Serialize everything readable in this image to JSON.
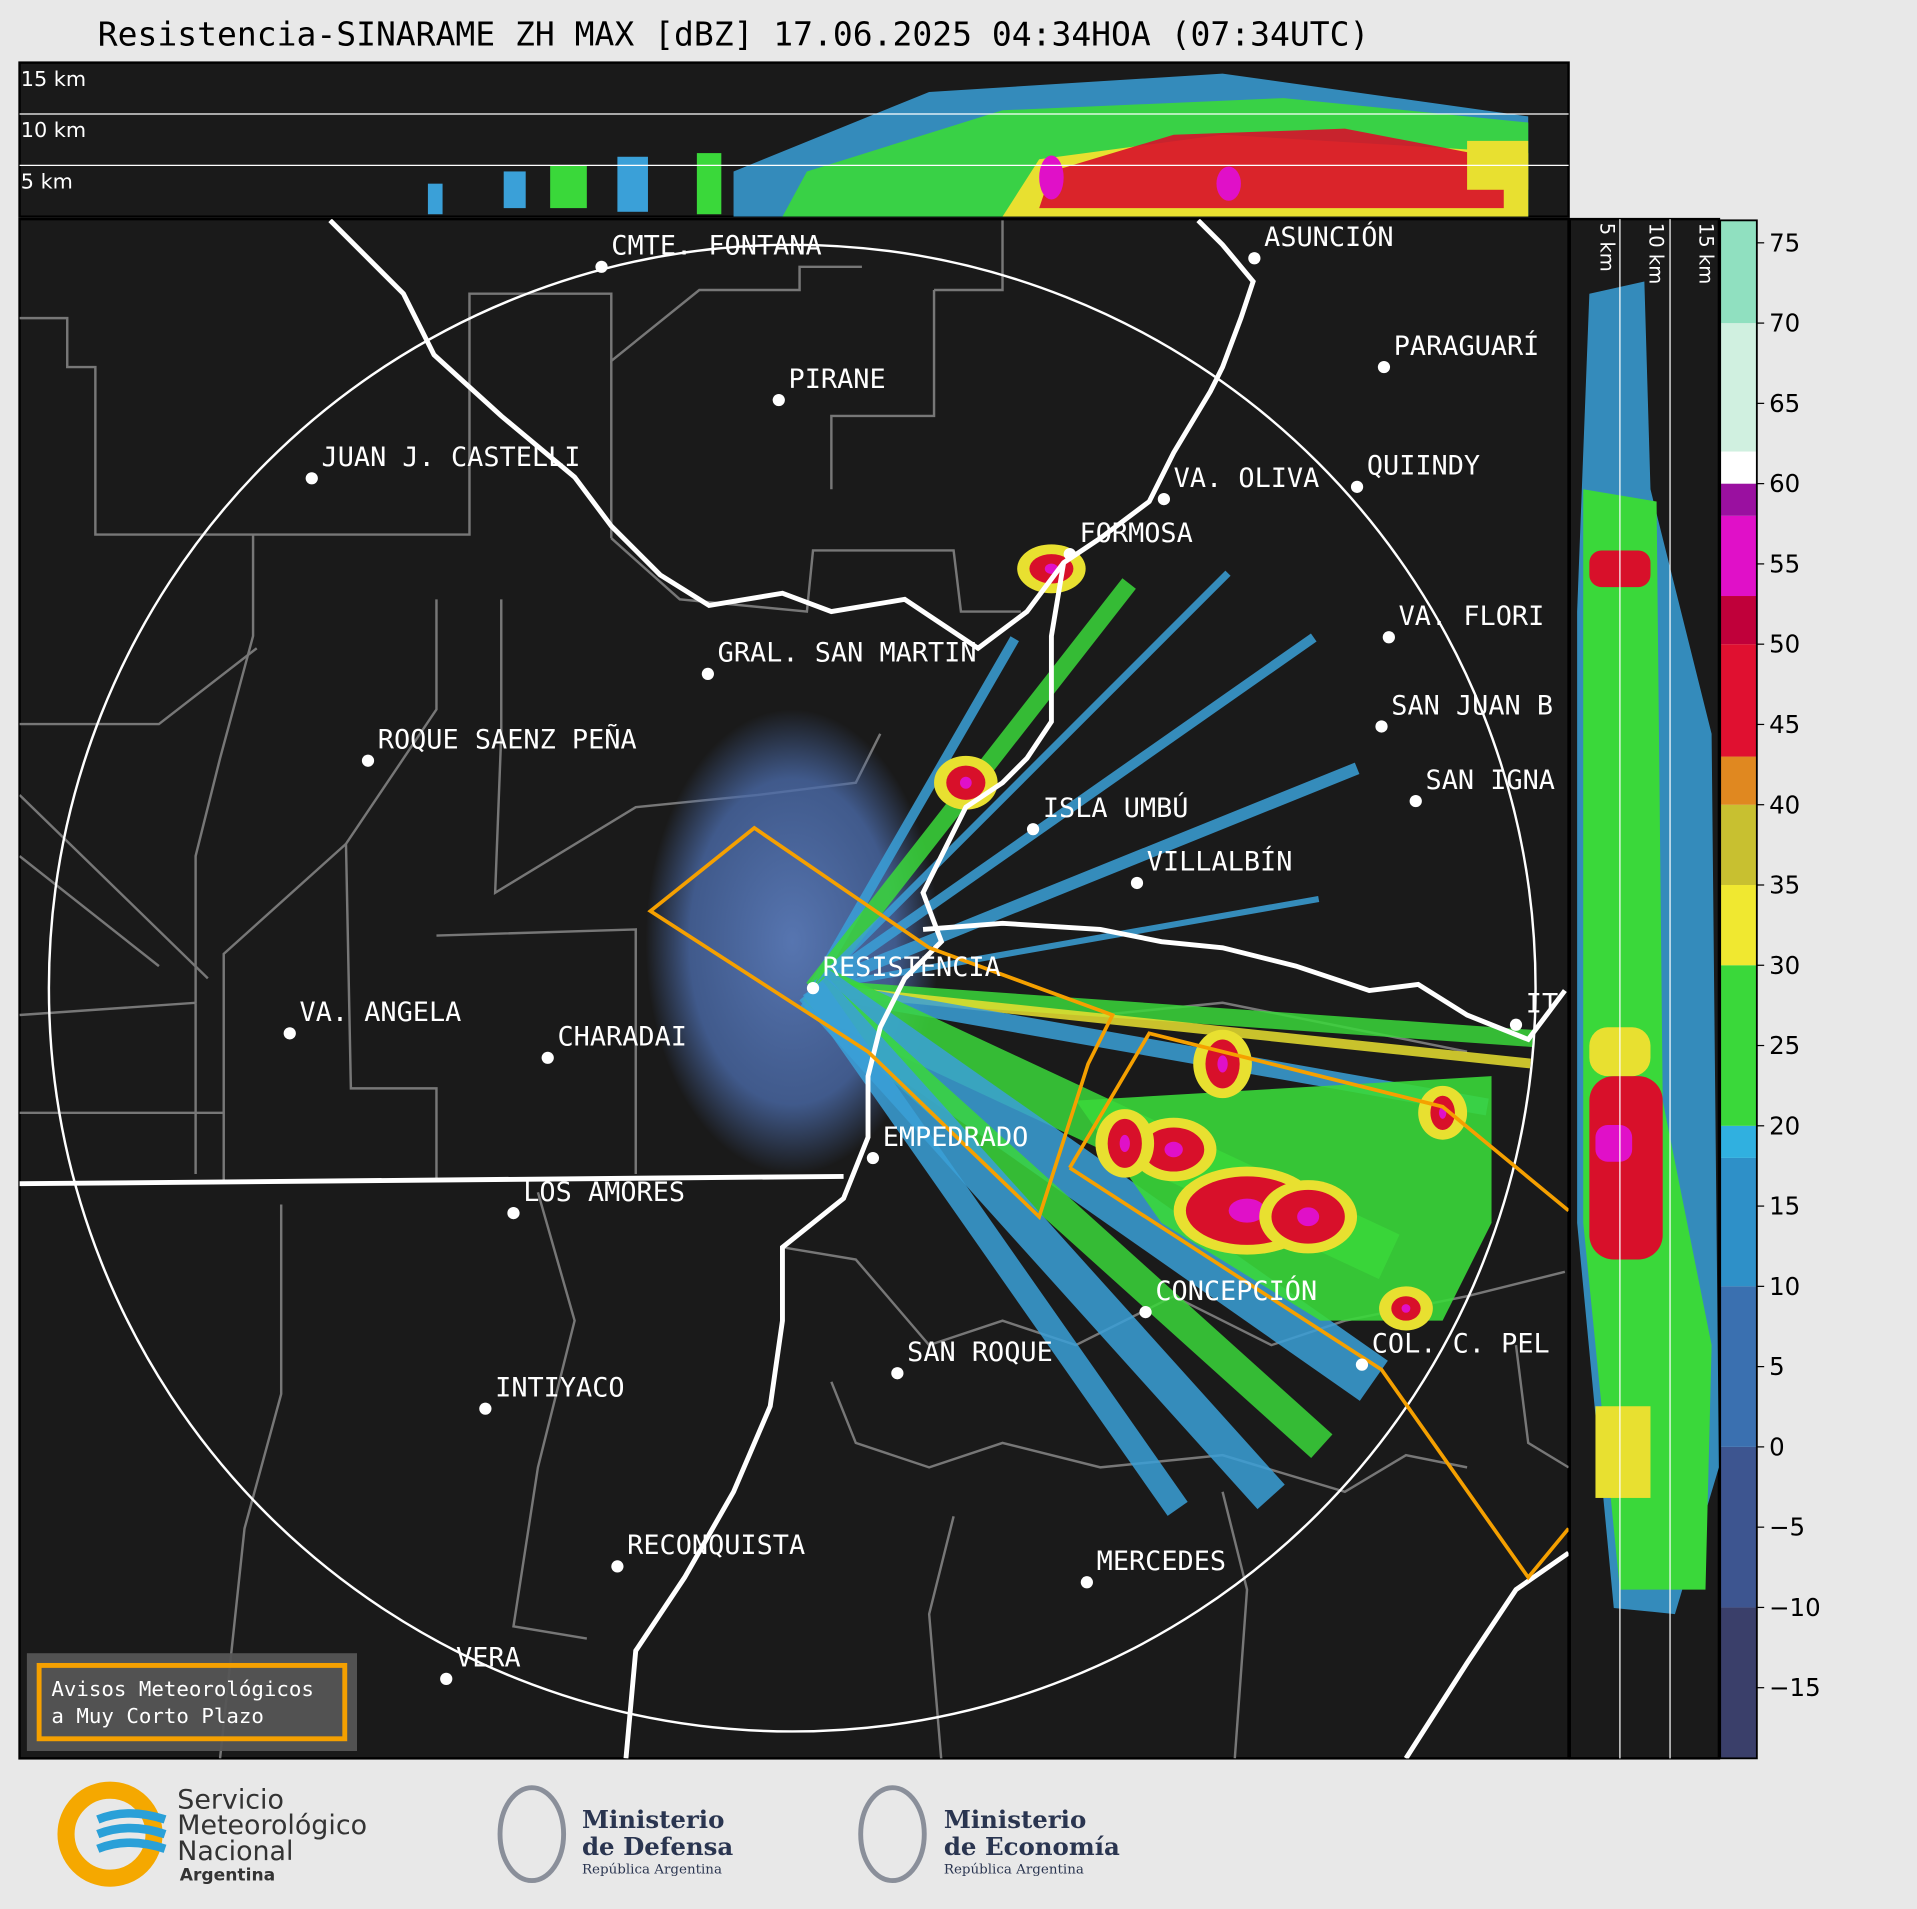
{
  "header": {
    "title": "Resistencia-SINARAME ZH MAX [dBZ] 17.06.2025 04:34HOA (07:34UTC)"
  },
  "top_panel": {
    "labels": [
      "15 km",
      "10 km",
      "5 km"
    ]
  },
  "side_panel": {
    "labels": [
      "5 km",
      "10 km",
      "15 km"
    ]
  },
  "cities": [
    "CMTE. FONTANA",
    "PIRANE",
    "JUAN J. CASTELLI",
    "ASUNCIÓN",
    "PARAGUARÍ",
    "VA. OLIVA",
    "QUIINDY",
    "FORMOSA",
    "VA. FLORI",
    "GRAL. SAN MARTIN",
    "SAN JUAN B",
    "ROQUE SAENZ PEÑA",
    "SAN IGNA",
    "ISLA UMBÚ",
    "VILLALBÍN",
    "RESISTENCIA",
    "VA. ANGELA",
    "CHARADAI",
    "EMPEDRADO",
    "LOS AMORES",
    "CONCEPCIÓN",
    "COL. C. PEL",
    "SAN ROQUE",
    "INTIYACO",
    "RECONQUISTA",
    "MERCEDES",
    "VERA",
    "IT"
  ],
  "colorbar": {
    "lim": [
      -19.4,
      76.4
    ],
    "ticks": [
      75,
      70,
      65,
      60,
      55,
      50,
      45,
      40,
      35,
      30,
      25,
      20,
      15,
      10,
      5,
      0,
      {
        "value": -5,
        "label": "−5"
      },
      {
        "value": -10,
        "label": "−10"
      },
      {
        "value": -15,
        "label": "−15"
      }
    ]
  },
  "legend": {
    "lines": [
      "Avisos Meteorológicos",
      "a Muy Corto Plazo"
    ]
  },
  "footer": {
    "smn": [
      "Servicio",
      "Meteorológico",
      "Nacional",
      "Argentina"
    ],
    "defensa": [
      "Ministerio",
      "de Defensa",
      "República Argentina"
    ],
    "economia": [
      "Ministerio",
      "de Economía",
      "República Argentina"
    ]
  }
}
